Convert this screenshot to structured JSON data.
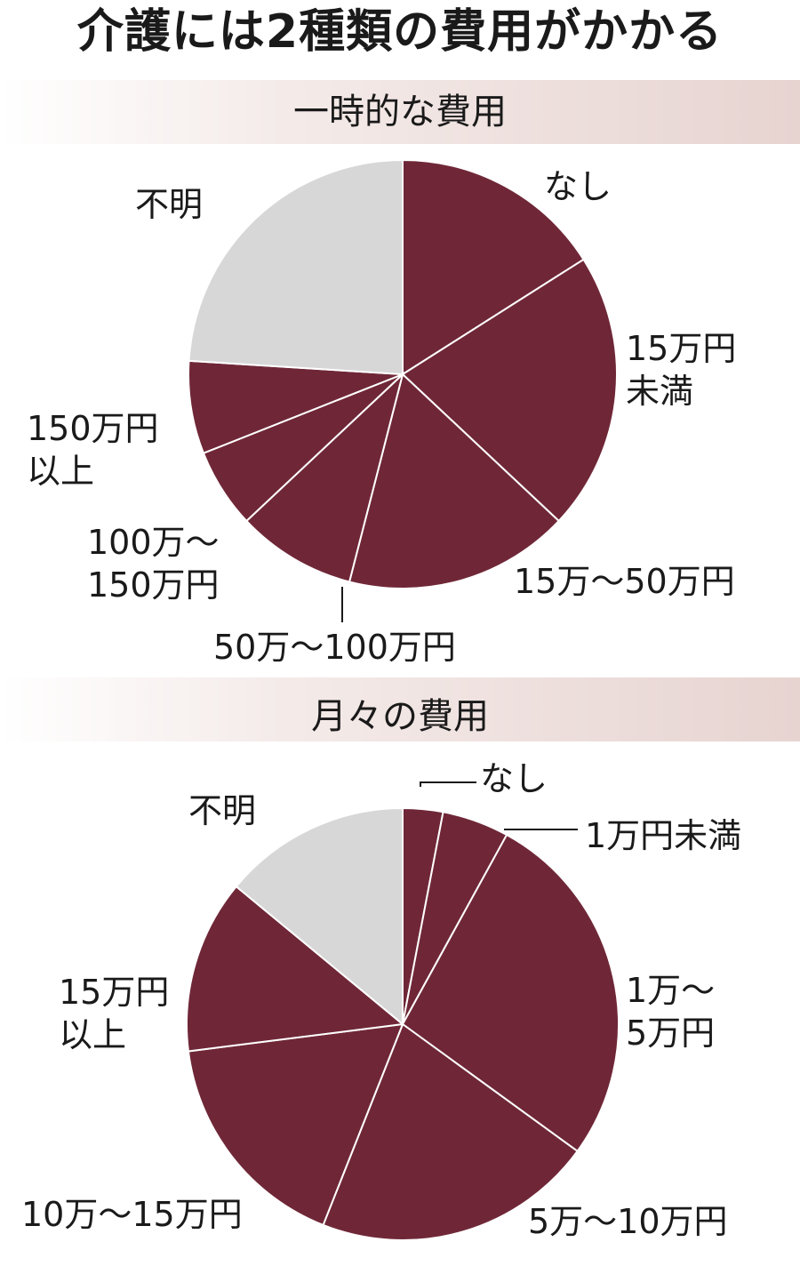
{
  "title": "介護には2種類の費用がかかる",
  "colors": {
    "slice": "#6f2737",
    "unknown": "#d7d7d7",
    "divider": "#ffffff"
  },
  "chart_data": [
    {
      "type": "pie",
      "title": "一時的な費用",
      "slices": [
        {
          "label": "なし",
          "label_lines": [
            "なし"
          ],
          "value": 16,
          "category": "cost"
        },
        {
          "label": "15万円未満",
          "label_lines": [
            "15万円",
            "未満"
          ],
          "value": 21,
          "category": "cost"
        },
        {
          "label": "15万～50万円",
          "label_lines": [
            "15万～50万円"
          ],
          "value": 17,
          "category": "cost"
        },
        {
          "label": "50万～100万円",
          "label_lines": [
            "50万～100万円"
          ],
          "value": 9,
          "category": "cost"
        },
        {
          "label": "100万～150万円",
          "label_lines": [
            "100万～",
            "150万円"
          ],
          "value": 6,
          "category": "cost"
        },
        {
          "label": "150万円以上",
          "label_lines": [
            "150万円",
            "以上"
          ],
          "value": 7,
          "category": "cost"
        },
        {
          "label": "不明",
          "label_lines": [
            "不明"
          ],
          "value": 24,
          "category": "unknown"
        }
      ]
    },
    {
      "type": "pie",
      "title": "月々の費用",
      "slices": [
        {
          "label": "なし",
          "label_lines": [
            "なし"
          ],
          "value": 3,
          "category": "cost"
        },
        {
          "label": "1万円未満",
          "label_lines": [
            "1万円未満"
          ],
          "value": 5,
          "category": "cost"
        },
        {
          "label": "1万～5万円",
          "label_lines": [
            "1万～",
            "5万円"
          ],
          "value": 27,
          "category": "cost"
        },
        {
          "label": "5万～10万円",
          "label_lines": [
            "5万～10万円"
          ],
          "value": 21,
          "category": "cost"
        },
        {
          "label": "10万～15万円",
          "label_lines": [
            "10万～15万円"
          ],
          "value": 17,
          "category": "cost"
        },
        {
          "label": "15万円以上",
          "label_lines": [
            "15万円",
            "以上"
          ],
          "value": 13,
          "category": "cost"
        },
        {
          "label": "不明",
          "label_lines": [
            "不明"
          ],
          "value": 14,
          "category": "unknown"
        }
      ]
    }
  ]
}
